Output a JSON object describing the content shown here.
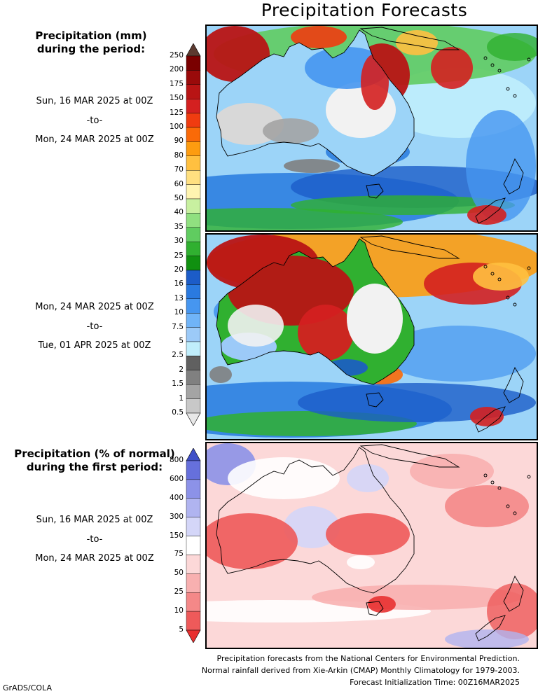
{
  "title": "Precipitation Forecasts",
  "panel_header_1": [
    "Precipitation (mm)",
    "during the period:"
  ],
  "period_1": {
    "from": "Sun, 16 MAR 2025 at 00Z",
    "to_word": "-to-",
    "until": "Mon, 24 MAR 2025 at 00Z"
  },
  "period_2": {
    "from": "Mon, 24 MAR 2025 at 00Z",
    "to_word": "-to-",
    "until": "Tue, 01 APR 2025 at 00Z"
  },
  "panel_header_3": [
    "Precipitation (% of normal)",
    "during the first period:"
  ],
  "period_3": {
    "from": "Sun, 16 MAR 2025 at 00Z",
    "to_word": "-to-",
    "until": "Mon, 24 MAR 2025 at 00Z"
  },
  "mm_scale": {
    "ticks": [
      "250",
      "200",
      "175",
      "150",
      "125",
      "100",
      "90",
      "80",
      "70",
      "60",
      "50",
      "40",
      "35",
      "30",
      "25",
      "20",
      "16",
      "13",
      "10",
      "7.5",
      "5",
      "2.5",
      "2",
      "1.5",
      "1",
      "0.5"
    ],
    "colors": [
      "#5c3a30",
      "#7a0000",
      "#9a0a0a",
      "#b81414",
      "#d42020",
      "#f03c10",
      "#fa6a08",
      "#fd9c10",
      "#ffc040",
      "#ffe080",
      "#fff4b0",
      "#c8f0a0",
      "#90e080",
      "#60cc60",
      "#30b030",
      "#109010",
      "#1c5cc8",
      "#2a7ae0",
      "#4696f0",
      "#70b4f8",
      "#9ccaf8",
      "#c0eefc",
      "#606060",
      "#808080",
      "#a4a4a4",
      "#c8c8c8",
      "#e8e8e8"
    ]
  },
  "pct_scale": {
    "ticks": [
      "800",
      "600",
      "400",
      "300",
      "150",
      "75",
      "50",
      "25",
      "10",
      "5"
    ],
    "colors": [
      "#4050c8",
      "#6670dc",
      "#8c92e8",
      "#b0b4f0",
      "#d4d6f8",
      "#ffffff",
      "#fcd8d8",
      "#f8b0b0",
      "#f48888",
      "#ee5a5a",
      "#e83030"
    ]
  },
  "credits": [
    "Precipitation forecasts from the National Centers for Environmental Prediction.",
    "Normal rainfall derived from Xie-Arkin (CMAP) Monthly Climatology for 1979-2003.",
    "Forecast Initialization Time: 00Z16MAR2025"
  ],
  "footer_left": "GrADS/COLA"
}
